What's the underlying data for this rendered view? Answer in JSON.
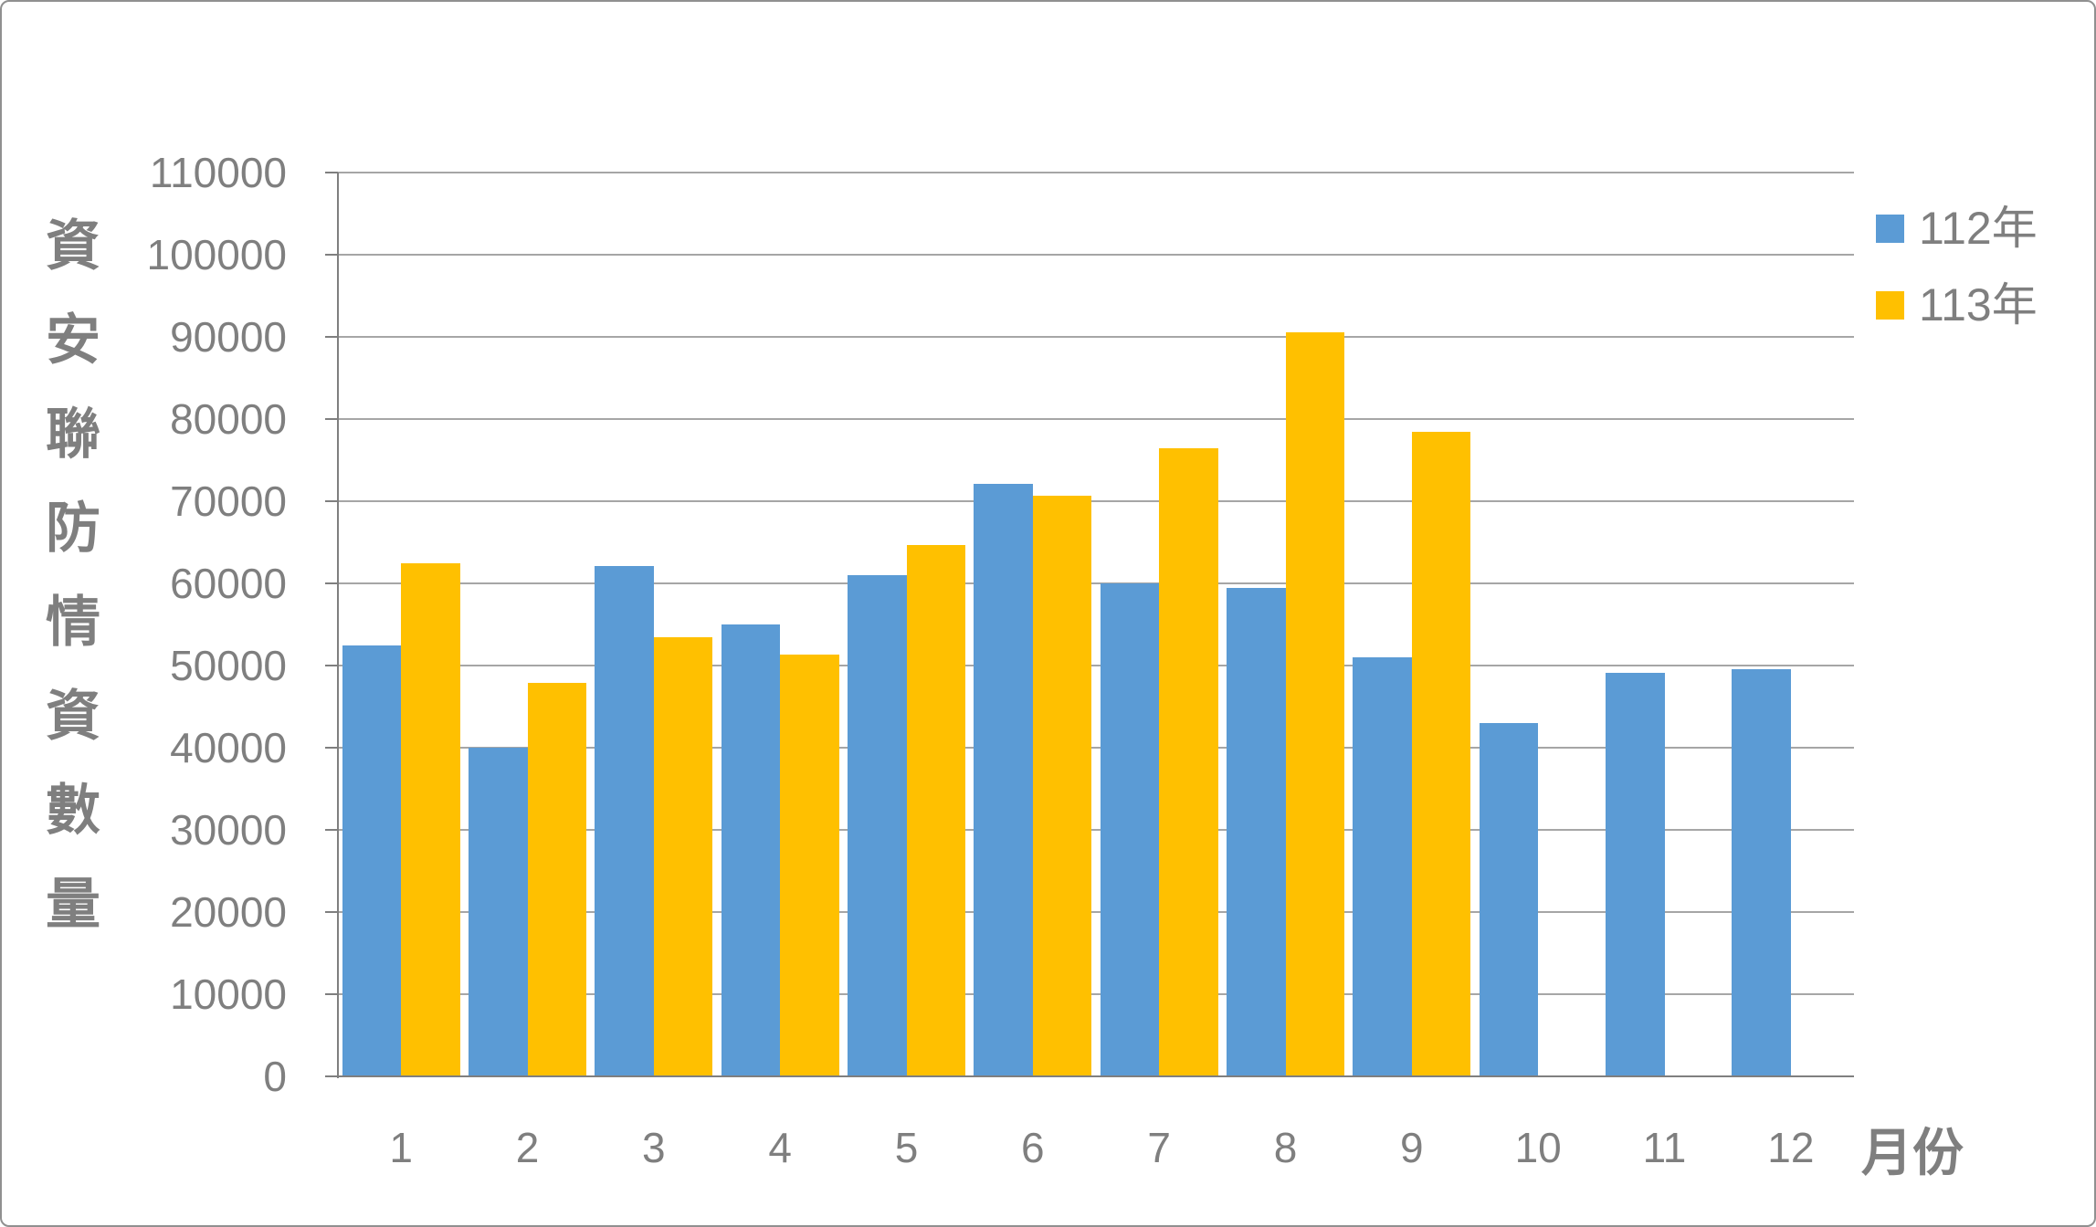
{
  "chart_data": {
    "type": "bar",
    "title": "",
    "y_axis_title": "資安聯防情資數量",
    "x_axis_title": "月份",
    "categories": [
      "1",
      "2",
      "3",
      "4",
      "5",
      "6",
      "7",
      "8",
      "9",
      "10",
      "11",
      "12"
    ],
    "series": [
      {
        "name": "112年",
        "color": "#5B9BD5",
        "values": [
          52400,
          40000,
          62100,
          55000,
          61000,
          72100,
          60000,
          59400,
          51000,
          43000,
          49100,
          49600
        ]
      },
      {
        "name": "113年",
        "color": "#FFC000",
        "values": [
          62400,
          47900,
          53400,
          51300,
          64700,
          70700,
          76400,
          90600,
          78400,
          null,
          null,
          null
        ]
      }
    ],
    "ylim": [
      0,
      110000
    ],
    "ytick_step": 10000,
    "y_ticks": [
      "0",
      "10000",
      "20000",
      "30000",
      "40000",
      "50000",
      "60000",
      "70000",
      "80000",
      "90000",
      "100000",
      "110000"
    ],
    "grid": true,
    "legend_position": "top-right"
  },
  "colors": {
    "background": "#FFFFFF",
    "frame_border": "#909090",
    "gridline": "#A6A6A6",
    "axis_line": "#7F7F7F",
    "label_text": "#7F7F7F",
    "series_112": "#5B9BD5",
    "series_113": "#FFC000"
  }
}
